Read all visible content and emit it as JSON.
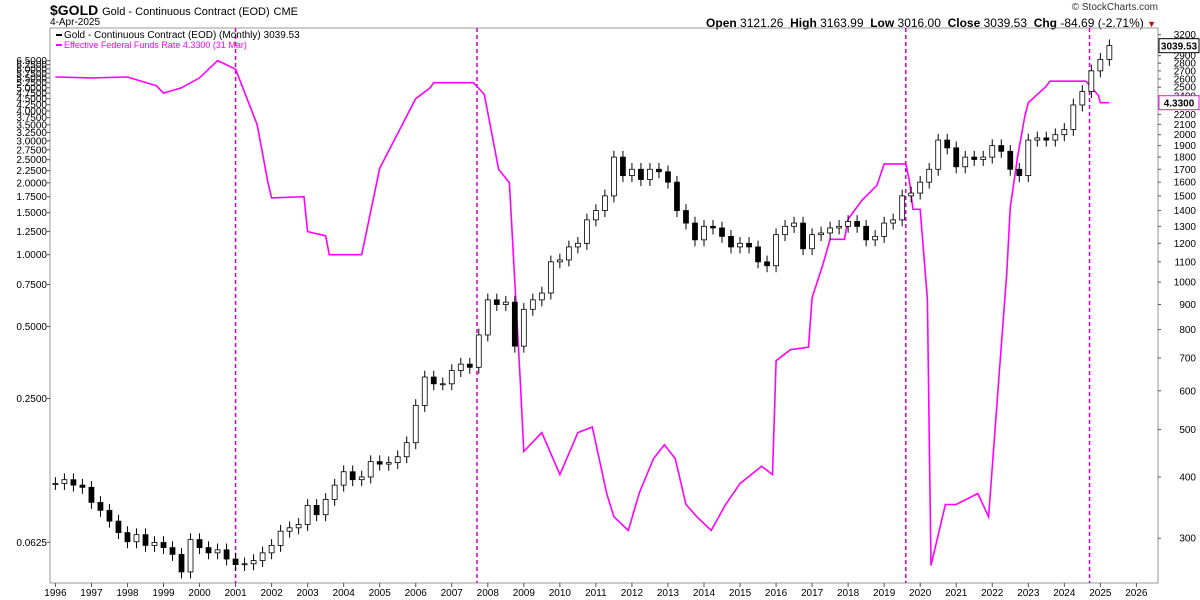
{
  "header": {
    "symbol": "$GOLD",
    "name": "Gold - Continuous Contract (EOD)",
    "exchange": "CME",
    "date": "4-Apr-2025",
    "open_label": "Open",
    "open": "3121.26",
    "high_label": "High",
    "high": "3163.99",
    "low_label": "Low",
    "low": "3016.00",
    "close_label": "Close",
    "close": "3039.53",
    "chg_label": "Chg",
    "chg": "-84.69 (-2.71%)",
    "watermark": "© StockCharts.com"
  },
  "chart_data": {
    "type": "line",
    "legend": [
      {
        "label": "Gold - Continuous Contract (EOD) (Monthly) 3039.53",
        "color": "#000000"
      },
      {
        "label": "Effective Federal Funds Rate 4.3300 (31 Mar)",
        "color": "#ff00ff"
      }
    ],
    "legend_position": "top-left",
    "grid": false,
    "x_ticks": [
      "1996",
      "1997",
      "1998",
      "1999",
      "2000",
      "2001",
      "2002",
      "2003",
      "2004",
      "2005",
      "2006",
      "2007",
      "2008",
      "2009",
      "2010",
      "2011",
      "2012",
      "2013",
      "2014",
      "2015",
      "2016",
      "2017",
      "2018",
      "2019",
      "2020",
      "2021",
      "2022",
      "2023",
      "2024",
      "2025",
      "2026"
    ],
    "xlim": [
      1995.85,
      2026.6
    ],
    "left_axis": {
      "scale": "log",
      "ylim": [
        0.0422,
        8.9
      ],
      "ticks": [
        {
          "label": "0.0625",
          "value": 0.0625
        },
        {
          "label": "0.2500",
          "value": 0.25
        },
        {
          "label": "0.5000",
          "value": 0.5
        },
        {
          "label": "0.7500",
          "value": 0.75
        },
        {
          "label": "1.0000",
          "value": 1.0
        },
        {
          "label": "1.2500",
          "value": 1.25
        },
        {
          "label": "1.5000",
          "value": 1.5
        },
        {
          "label": "1.7500",
          "value": 1.75
        },
        {
          "label": "2.0000",
          "value": 2.0
        },
        {
          "label": "2.2500",
          "value": 2.25
        },
        {
          "label": "2.5000",
          "value": 2.5
        },
        {
          "label": "2.7500",
          "value": 2.75
        },
        {
          "label": "3.0000",
          "value": 3.0
        },
        {
          "label": "3.2500",
          "value": 3.25
        },
        {
          "label": "3.5000",
          "value": 3.5
        },
        {
          "label": "3.7500",
          "value": 3.75
        },
        {
          "label": "4.0000",
          "value": 4.0
        },
        {
          "label": "4.2500",
          "value": 4.25
        },
        {
          "label": "4.5000",
          "value": 4.5
        },
        {
          "label": "4.7500",
          "value": 4.75
        },
        {
          "label": "5.0000",
          "value": 5.0
        },
        {
          "label": "5.2500",
          "value": 5.25
        },
        {
          "label": "5.5000",
          "value": 5.5
        },
        {
          "label": "5.7500",
          "value": 5.75
        },
        {
          "label": "6.0000",
          "value": 6.0
        },
        {
          "label": "6.2500",
          "value": 6.25
        },
        {
          "label": "6.5000",
          "value": 6.5
        }
      ]
    },
    "right_axis": {
      "scale": "log",
      "ylim": [
        243,
        3303
      ],
      "ticks": [
        300,
        400,
        500,
        600,
        700,
        800,
        900,
        1000,
        1100,
        1200,
        1300,
        1400,
        1500,
        1600,
        1700,
        1800,
        1900,
        2000,
        2100,
        2200,
        2300,
        2400,
        2500,
        2600,
        2700,
        2800,
        2900,
        3000,
        3100,
        3200
      ]
    },
    "vertical_markers": [
      2001.0,
      2007.7,
      2019.6,
      2024.7
    ],
    "last_value_tags": {
      "gold": {
        "label": "3039.53",
        "value": 3039.53
      },
      "rate": {
        "label": "4.3300",
        "value": 4.33
      }
    },
    "series": [
      {
        "name": "Gold - Continuous Contract (EOD) (Monthly)",
        "axis": "right",
        "style": "candlestick",
        "points": [
          [
            1996.0,
            388
          ],
          [
            1996.25,
            395
          ],
          [
            1996.5,
            385
          ],
          [
            1996.75,
            381
          ],
          [
            1997.0,
            355
          ],
          [
            1997.25,
            342
          ],
          [
            1997.5,
            325
          ],
          [
            1997.75,
            308
          ],
          [
            1998.0,
            295
          ],
          [
            1998.25,
            305
          ],
          [
            1998.5,
            290
          ],
          [
            1998.75,
            294
          ],
          [
            1999.0,
            287
          ],
          [
            1999.25,
            278
          ],
          [
            1999.5,
            256
          ],
          [
            1999.75,
            298
          ],
          [
            2000.0,
            287
          ],
          [
            2000.25,
            280
          ],
          [
            2000.5,
            284
          ],
          [
            2000.75,
            272
          ],
          [
            2001.0,
            265
          ],
          [
            2001.25,
            266
          ],
          [
            2001.5,
            270
          ],
          [
            2001.75,
            280
          ],
          [
            2002.0,
            290
          ],
          [
            2002.25,
            310
          ],
          [
            2002.5,
            315
          ],
          [
            2002.75,
            320
          ],
          [
            2003.0,
            350
          ],
          [
            2003.25,
            335
          ],
          [
            2003.5,
            360
          ],
          [
            2003.75,
            385
          ],
          [
            2004.0,
            410
          ],
          [
            2004.25,
            395
          ],
          [
            2004.5,
            400
          ],
          [
            2004.75,
            430
          ],
          [
            2005.0,
            425
          ],
          [
            2005.25,
            428
          ],
          [
            2005.5,
            440
          ],
          [
            2005.75,
            470
          ],
          [
            2006.0,
            560
          ],
          [
            2006.25,
            640
          ],
          [
            2006.5,
            620
          ],
          [
            2006.75,
            620
          ],
          [
            2007.0,
            660
          ],
          [
            2007.25,
            680
          ],
          [
            2007.5,
            670
          ],
          [
            2007.75,
            780
          ],
          [
            2008.0,
            920
          ],
          [
            2008.25,
            900
          ],
          [
            2008.5,
            910
          ],
          [
            2008.75,
            740
          ],
          [
            2009.0,
            880
          ],
          [
            2009.25,
            920
          ],
          [
            2009.5,
            950
          ],
          [
            2009.75,
            1100
          ],
          [
            2010.0,
            1110
          ],
          [
            2010.25,
            1180
          ],
          [
            2010.5,
            1200
          ],
          [
            2010.75,
            1340
          ],
          [
            2011.0,
            1400
          ],
          [
            2011.25,
            1500
          ],
          [
            2011.5,
            1800
          ],
          [
            2011.75,
            1650
          ],
          [
            2012.0,
            1700
          ],
          [
            2012.25,
            1620
          ],
          [
            2012.5,
            1700
          ],
          [
            2012.75,
            1680
          ],
          [
            2013.0,
            1600
          ],
          [
            2013.25,
            1400
          ],
          [
            2013.5,
            1320
          ],
          [
            2013.75,
            1220
          ],
          [
            2014.0,
            1300
          ],
          [
            2014.25,
            1290
          ],
          [
            2014.5,
            1240
          ],
          [
            2014.75,
            1180
          ],
          [
            2015.0,
            1200
          ],
          [
            2015.25,
            1180
          ],
          [
            2015.5,
            1100
          ],
          [
            2015.75,
            1080
          ],
          [
            2016.0,
            1250
          ],
          [
            2016.25,
            1300
          ],
          [
            2016.5,
            1320
          ],
          [
            2016.75,
            1170
          ],
          [
            2017.0,
            1250
          ],
          [
            2017.25,
            1260
          ],
          [
            2017.5,
            1290
          ],
          [
            2017.75,
            1300
          ],
          [
            2018.0,
            1330
          ],
          [
            2018.25,
            1300
          ],
          [
            2018.5,
            1220
          ],
          [
            2018.75,
            1240
          ],
          [
            2019.0,
            1320
          ],
          [
            2019.25,
            1340
          ],
          [
            2019.5,
            1500
          ],
          [
            2019.75,
            1520
          ],
          [
            2020.0,
            1600
          ],
          [
            2020.25,
            1700
          ],
          [
            2020.5,
            1950
          ],
          [
            2020.75,
            1880
          ],
          [
            2021.0,
            1720
          ],
          [
            2021.25,
            1800
          ],
          [
            2021.5,
            1780
          ],
          [
            2021.75,
            1800
          ],
          [
            2022.0,
            1900
          ],
          [
            2022.25,
            1850
          ],
          [
            2022.5,
            1700
          ],
          [
            2022.75,
            1650
          ],
          [
            2023.0,
            1950
          ],
          [
            2023.25,
            1970
          ],
          [
            2023.5,
            1950
          ],
          [
            2023.75,
            2000
          ],
          [
            2024.0,
            2050
          ],
          [
            2024.25,
            2300
          ],
          [
            2024.5,
            2450
          ],
          [
            2024.75,
            2700
          ],
          [
            2025.0,
            2850
          ],
          [
            2025.25,
            3039.53
          ]
        ]
      },
      {
        "name": "Effective Federal Funds Rate",
        "axis": "left",
        "style": "line",
        "color": "#ff00ff",
        "points": [
          [
            1996.0,
            5.55
          ],
          [
            1997.0,
            5.5
          ],
          [
            1998.0,
            5.55
          ],
          [
            1998.8,
            5.1
          ],
          [
            1999.0,
            4.75
          ],
          [
            1999.5,
            5.0
          ],
          [
            2000.0,
            5.5
          ],
          [
            2000.5,
            6.5
          ],
          [
            2001.0,
            5.98
          ],
          [
            2001.6,
            3.5
          ],
          [
            2001.9,
            2.0
          ],
          [
            2002.0,
            1.73
          ],
          [
            2002.9,
            1.75
          ],
          [
            2003.0,
            1.25
          ],
          [
            2003.5,
            1.2
          ],
          [
            2003.6,
            1.0
          ],
          [
            2004.5,
            1.0
          ],
          [
            2005.0,
            2.3
          ],
          [
            2006.0,
            4.5
          ],
          [
            2006.4,
            5.0
          ],
          [
            2006.5,
            5.25
          ],
          [
            2007.6,
            5.25
          ],
          [
            2007.9,
            4.7
          ],
          [
            2008.0,
            3.94
          ],
          [
            2008.3,
            2.28
          ],
          [
            2008.6,
            2.0
          ],
          [
            2008.9,
            0.3
          ],
          [
            2009.0,
            0.15
          ],
          [
            2009.5,
            0.18
          ],
          [
            2010.0,
            0.12
          ],
          [
            2010.5,
            0.18
          ],
          [
            2010.9,
            0.19
          ],
          [
            2011.3,
            0.1
          ],
          [
            2011.5,
            0.08
          ],
          [
            2011.9,
            0.07
          ],
          [
            2012.2,
            0.1
          ],
          [
            2012.6,
            0.14
          ],
          [
            2012.9,
            0.16
          ],
          [
            2013.2,
            0.14
          ],
          [
            2013.5,
            0.09
          ],
          [
            2013.8,
            0.08
          ],
          [
            2014.2,
            0.07
          ],
          [
            2014.6,
            0.09
          ],
          [
            2015.0,
            0.11
          ],
          [
            2015.6,
            0.13
          ],
          [
            2015.9,
            0.12
          ],
          [
            2016.0,
            0.36
          ],
          [
            2016.4,
            0.4
          ],
          [
            2016.9,
            0.41
          ],
          [
            2017.0,
            0.66
          ],
          [
            2017.3,
            0.91
          ],
          [
            2017.5,
            1.16
          ],
          [
            2017.9,
            1.16
          ],
          [
            2018.0,
            1.41
          ],
          [
            2018.4,
            1.7
          ],
          [
            2018.8,
            1.95
          ],
          [
            2019.0,
            2.4
          ],
          [
            2019.6,
            2.4
          ],
          [
            2019.7,
            2.04
          ],
          [
            2019.8,
            1.55
          ],
          [
            2020.0,
            1.55
          ],
          [
            2020.2,
            0.65
          ],
          [
            2020.3,
            0.05
          ],
          [
            2020.7,
            0.09
          ],
          [
            2021.0,
            0.09
          ],
          [
            2021.6,
            0.1
          ],
          [
            2021.9,
            0.08
          ],
          [
            2022.2,
            0.33
          ],
          [
            2022.4,
            0.83
          ],
          [
            2022.5,
            1.58
          ],
          [
            2022.7,
            2.56
          ],
          [
            2022.9,
            3.78
          ],
          [
            2023.0,
            4.33
          ],
          [
            2023.5,
            5.08
          ],
          [
            2023.6,
            5.33
          ],
          [
            2024.6,
            5.33
          ],
          [
            2024.7,
            5.13
          ],
          [
            2024.85,
            4.83
          ],
          [
            2024.95,
            4.64
          ],
          [
            2025.0,
            4.33
          ],
          [
            2025.25,
            4.33
          ]
        ]
      }
    ]
  }
}
